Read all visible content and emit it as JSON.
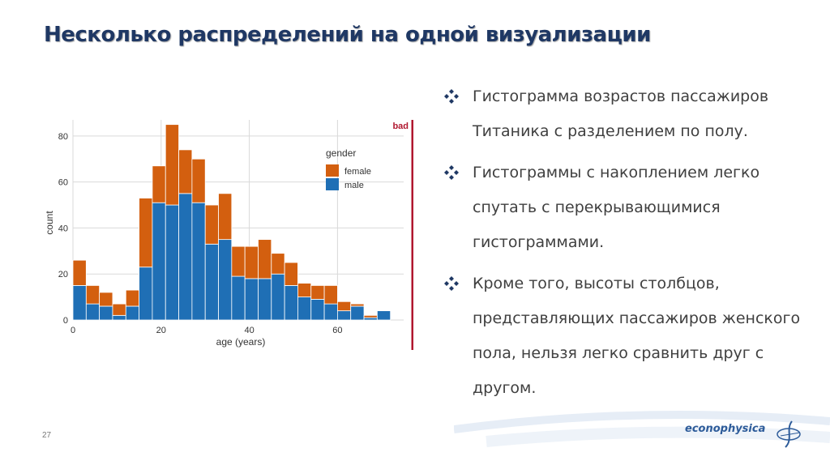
{
  "slide": {
    "title": "Несколько распределений на одной визуализации",
    "page_number": "27",
    "logo_text": "econophysica"
  },
  "bullets": [
    "Гистограмма возрастов пассажиров Титаника с разделением по полу.",
    "Гистограммы с накоплением легко спутать с перекрывающимися гистограммами.",
    "Кроме того, высоты столбцов, представляющих пассажиров женского пола, нельзя легко сравнить друг с другом."
  ],
  "colors": {
    "female": "#d35f0f",
    "male": "#1f6fb5",
    "bad_marker": "#b0172f",
    "title": "#1f3864",
    "bullet_icon": "#1f3864"
  },
  "icons": {
    "bullet": "diamond-four-icon",
    "logo": "econophysica-logo-icon"
  },
  "chart_data": {
    "type": "bar",
    "stacked": true,
    "xlabel": "age (years)",
    "ylabel": "count",
    "xlim": [
      0,
      75
    ],
    "ylim": [
      0,
      87
    ],
    "xticks": [
      0,
      20,
      40,
      60
    ],
    "yticks": [
      0,
      20,
      40,
      60,
      80
    ],
    "bin_width": 3,
    "bin_starts": [
      0,
      3,
      6,
      9,
      12,
      15,
      18,
      21,
      24,
      27,
      30,
      33,
      36,
      39,
      42,
      45,
      48,
      51,
      54,
      57,
      60,
      63,
      66,
      69
    ],
    "legend_title": "gender",
    "legend_position": "top-right",
    "series": [
      {
        "name": "male",
        "values": [
          15,
          7,
          6,
          2,
          6,
          23,
          51,
          50,
          55,
          51,
          33,
          35,
          19,
          18,
          18,
          20,
          15,
          10,
          9,
          7,
          4,
          6,
          1,
          4
        ]
      },
      {
        "name": "female",
        "values": [
          11,
          8,
          6,
          5,
          7,
          30,
          16,
          35,
          19,
          19,
          17,
          20,
          13,
          14,
          17,
          9,
          10,
          6,
          6,
          8,
          4,
          1,
          1,
          0
        ]
      }
    ],
    "annotation": "bad",
    "grid": true
  }
}
